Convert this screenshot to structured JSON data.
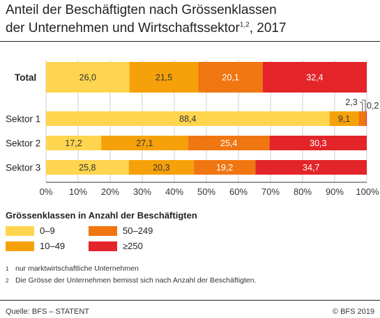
{
  "title": {
    "line1": "Anteil der Beschäftigten nach Grössenklassen",
    "line2_text": "der Unternehmen und Wirtschaftssektor",
    "line2_sup": "1,2",
    "line2_tail": ", 2017"
  },
  "legend": {
    "title": "Grössenklassen in Anzahl der Beschäftigten",
    "items": [
      {
        "label": "0–9",
        "color": "#ffd54f"
      },
      {
        "label": "50–249",
        "color": "#f07612"
      },
      {
        "label": "10–49",
        "color": "#f6a10a"
      },
      {
        "label": "≥250",
        "color": "#e3252a"
      }
    ]
  },
  "footnotes": [
    {
      "num": "1",
      "text": "nur marktwirtschaftliche Unternehmen"
    },
    {
      "num": "2",
      "text": "Die Grösse der Unternehmen bemisst sich nach Anzahl der Beschäftigten."
    }
  ],
  "source": "Quelle: BFS – STATENT",
  "copyright": "© BFS 2019",
  "chart_data": {
    "type": "bar",
    "orientation": "horizontal",
    "stacked": true,
    "categories": [
      "Total",
      "Sektor 1",
      "Sektor 2",
      "Sektor 3"
    ],
    "series": [
      {
        "name": "0–9",
        "color": "#ffd54f",
        "values": [
          26.0,
          88.4,
          17.2,
          25.8
        ],
        "labels": [
          "26,0",
          "88,4",
          "17,2",
          "25,8"
        ]
      },
      {
        "name": "10–49",
        "color": "#f6a10a",
        "values": [
          21.5,
          9.1,
          27.1,
          20.3
        ],
        "labels": [
          "21,5",
          "9,1",
          "27,1",
          "20,3"
        ]
      },
      {
        "name": "50–249",
        "color": "#f07612",
        "values": [
          20.1,
          2.3,
          25.4,
          19.2
        ],
        "labels": [
          "20,1",
          "2,3",
          "25,4",
          "19,2"
        ]
      },
      {
        "name": "≥250",
        "color": "#e3252a",
        "values": [
          32.4,
          0.2,
          30.3,
          34.7
        ],
        "labels": [
          "32,4",
          "0,2",
          "30,3",
          "34,7"
        ]
      }
    ],
    "xlim": [
      0,
      100
    ],
    "xticks": [
      "0%",
      "10%",
      "20%",
      "30%",
      "40%",
      "50%",
      "60%",
      "70%",
      "80%",
      "90%",
      "100%"
    ],
    "grid": true
  }
}
